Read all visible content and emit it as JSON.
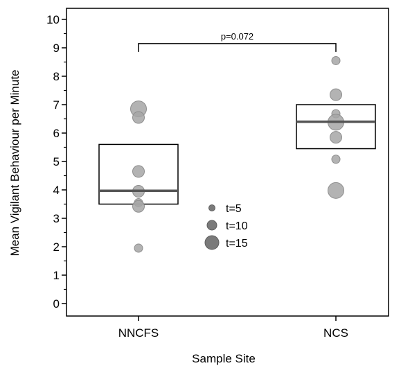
{
  "chart_data": {
    "type": "scatter",
    "subtype": "box-dot",
    "title": "",
    "xlabel": "Sample Site",
    "ylabel": "Mean Vigilant Behaviour per Minute",
    "ylim": [
      0,
      10
    ],
    "yticks": [
      0,
      1,
      2,
      3,
      4,
      5,
      6,
      7,
      8,
      9,
      10
    ],
    "yminor_ticks": [
      0.5,
      1.5,
      2.5,
      3.5,
      4.5,
      5.5,
      6.5,
      7.5,
      8.5,
      9.5
    ],
    "categories": [
      "NNCFS",
      "NCS"
    ],
    "boxes": [
      {
        "category": "NNCFS",
        "lower": 3.5,
        "median": 3.97,
        "upper": 5.6
      },
      {
        "category": "NCS",
        "lower": 5.45,
        "median": 6.4,
        "upper": 7.0
      }
    ],
    "points": [
      {
        "category": "NNCFS",
        "y": 6.85,
        "t": 15
      },
      {
        "category": "NNCFS",
        "y": 6.55,
        "t": 10
      },
      {
        "category": "NNCFS",
        "y": 4.65,
        "t": 10
      },
      {
        "category": "NNCFS",
        "y": 3.95,
        "t": 10
      },
      {
        "category": "NNCFS",
        "y": 3.55,
        "t": 5
      },
      {
        "category": "NNCFS",
        "y": 3.42,
        "t": 10
      },
      {
        "category": "NNCFS",
        "y": 1.95,
        "t": 5
      },
      {
        "category": "NCS",
        "y": 8.55,
        "t": 5
      },
      {
        "category": "NCS",
        "y": 7.35,
        "t": 10
      },
      {
        "category": "NCS",
        "y": 6.68,
        "t": 5
      },
      {
        "category": "NCS",
        "y": 6.38,
        "t": 15
      },
      {
        "category": "NCS",
        "y": 5.85,
        "t": 10
      },
      {
        "category": "NCS",
        "y": 5.08,
        "t": 5
      },
      {
        "category": "NCS",
        "y": 3.98,
        "t": 15
      }
    ],
    "significance": {
      "label": "p=0.072",
      "between": [
        "NNCFS",
        "NCS"
      ],
      "y": 9.15
    },
    "legend": {
      "placement": "center",
      "entries": [
        {
          "label": "t=5",
          "t": 5
        },
        {
          "label": "t=10",
          "t": 10
        },
        {
          "label": "t=15",
          "t": 15
        }
      ]
    },
    "grid": false,
    "colors": {
      "point": "#a6a6a6",
      "point_stroke": "#8e8e8e",
      "median": "#555555",
      "legend_point": "#7a7a7a",
      "axis": "#000000"
    }
  }
}
